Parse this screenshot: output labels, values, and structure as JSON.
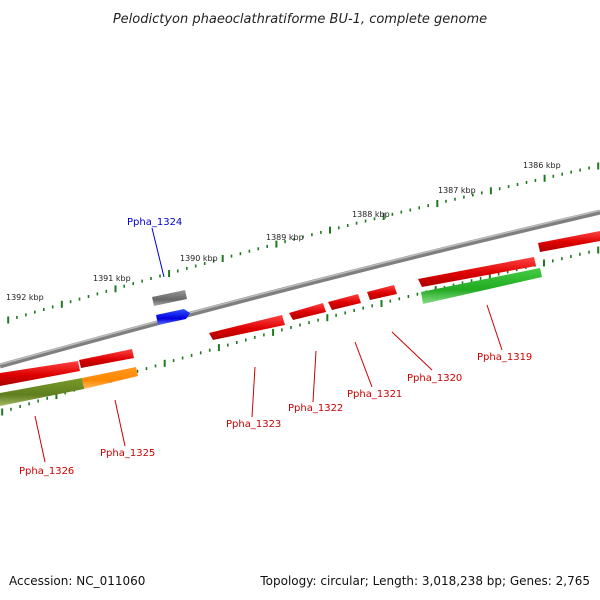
{
  "title": "Pelodictyon phaeoclathratiforme BU-1, complete genome",
  "scale_labels": [
    "1386 kbp",
    "1387 kbp",
    "1388 kbp",
    "1389 kbp",
    "1390 kbp",
    "1391 kbp",
    "1392 kbp"
  ],
  "genes": [
    {
      "id": "Ppha_1319",
      "color": "#cc0000"
    },
    {
      "id": "Ppha_1320",
      "color": "#cc0000"
    },
    {
      "id": "Ppha_1321",
      "color": "#cc0000"
    },
    {
      "id": "Ppha_1322",
      "color": "#cc0000"
    },
    {
      "id": "Ppha_1323",
      "color": "#cc0000"
    },
    {
      "id": "Ppha_1324",
      "color": "#0000cc"
    },
    {
      "id": "Ppha_1325",
      "color": "#cc0000"
    },
    {
      "id": "Ppha_1326",
      "color": "#cc0000"
    }
  ],
  "colors": {
    "backbone": "#8a8a8a",
    "tick_dots": "#1f7a1f",
    "feature_red": "#e60000",
    "feature_green": "#33bb33",
    "feature_orange": "#ff8800",
    "feature_olive": "#6b8e23",
    "feature_blue": "#0000ee",
    "feature_gray": "#666666"
  },
  "footer": {
    "accession": "Accession: NC_011060",
    "info": "Topology: circular; Length: 3,018,238 bp; Genes: 2,765"
  }
}
